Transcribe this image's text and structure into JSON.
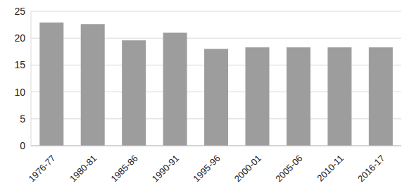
{
  "chart_data": {
    "type": "bar",
    "categories": [
      "1976-77",
      "1980-81",
      "1985-86",
      "1990-91",
      "1995-96",
      "2000-01",
      "2005-06",
      "2010-11",
      "2016-17"
    ],
    "values": [
      22.9,
      22.6,
      19.6,
      21.0,
      18.0,
      18.3,
      18.3,
      18.3,
      18.3
    ],
    "color": "#9d9d9d",
    "ylim": [
      0,
      25
    ],
    "yticks": [
      0,
      5,
      10,
      15,
      20,
      25
    ],
    "grid": true
  }
}
